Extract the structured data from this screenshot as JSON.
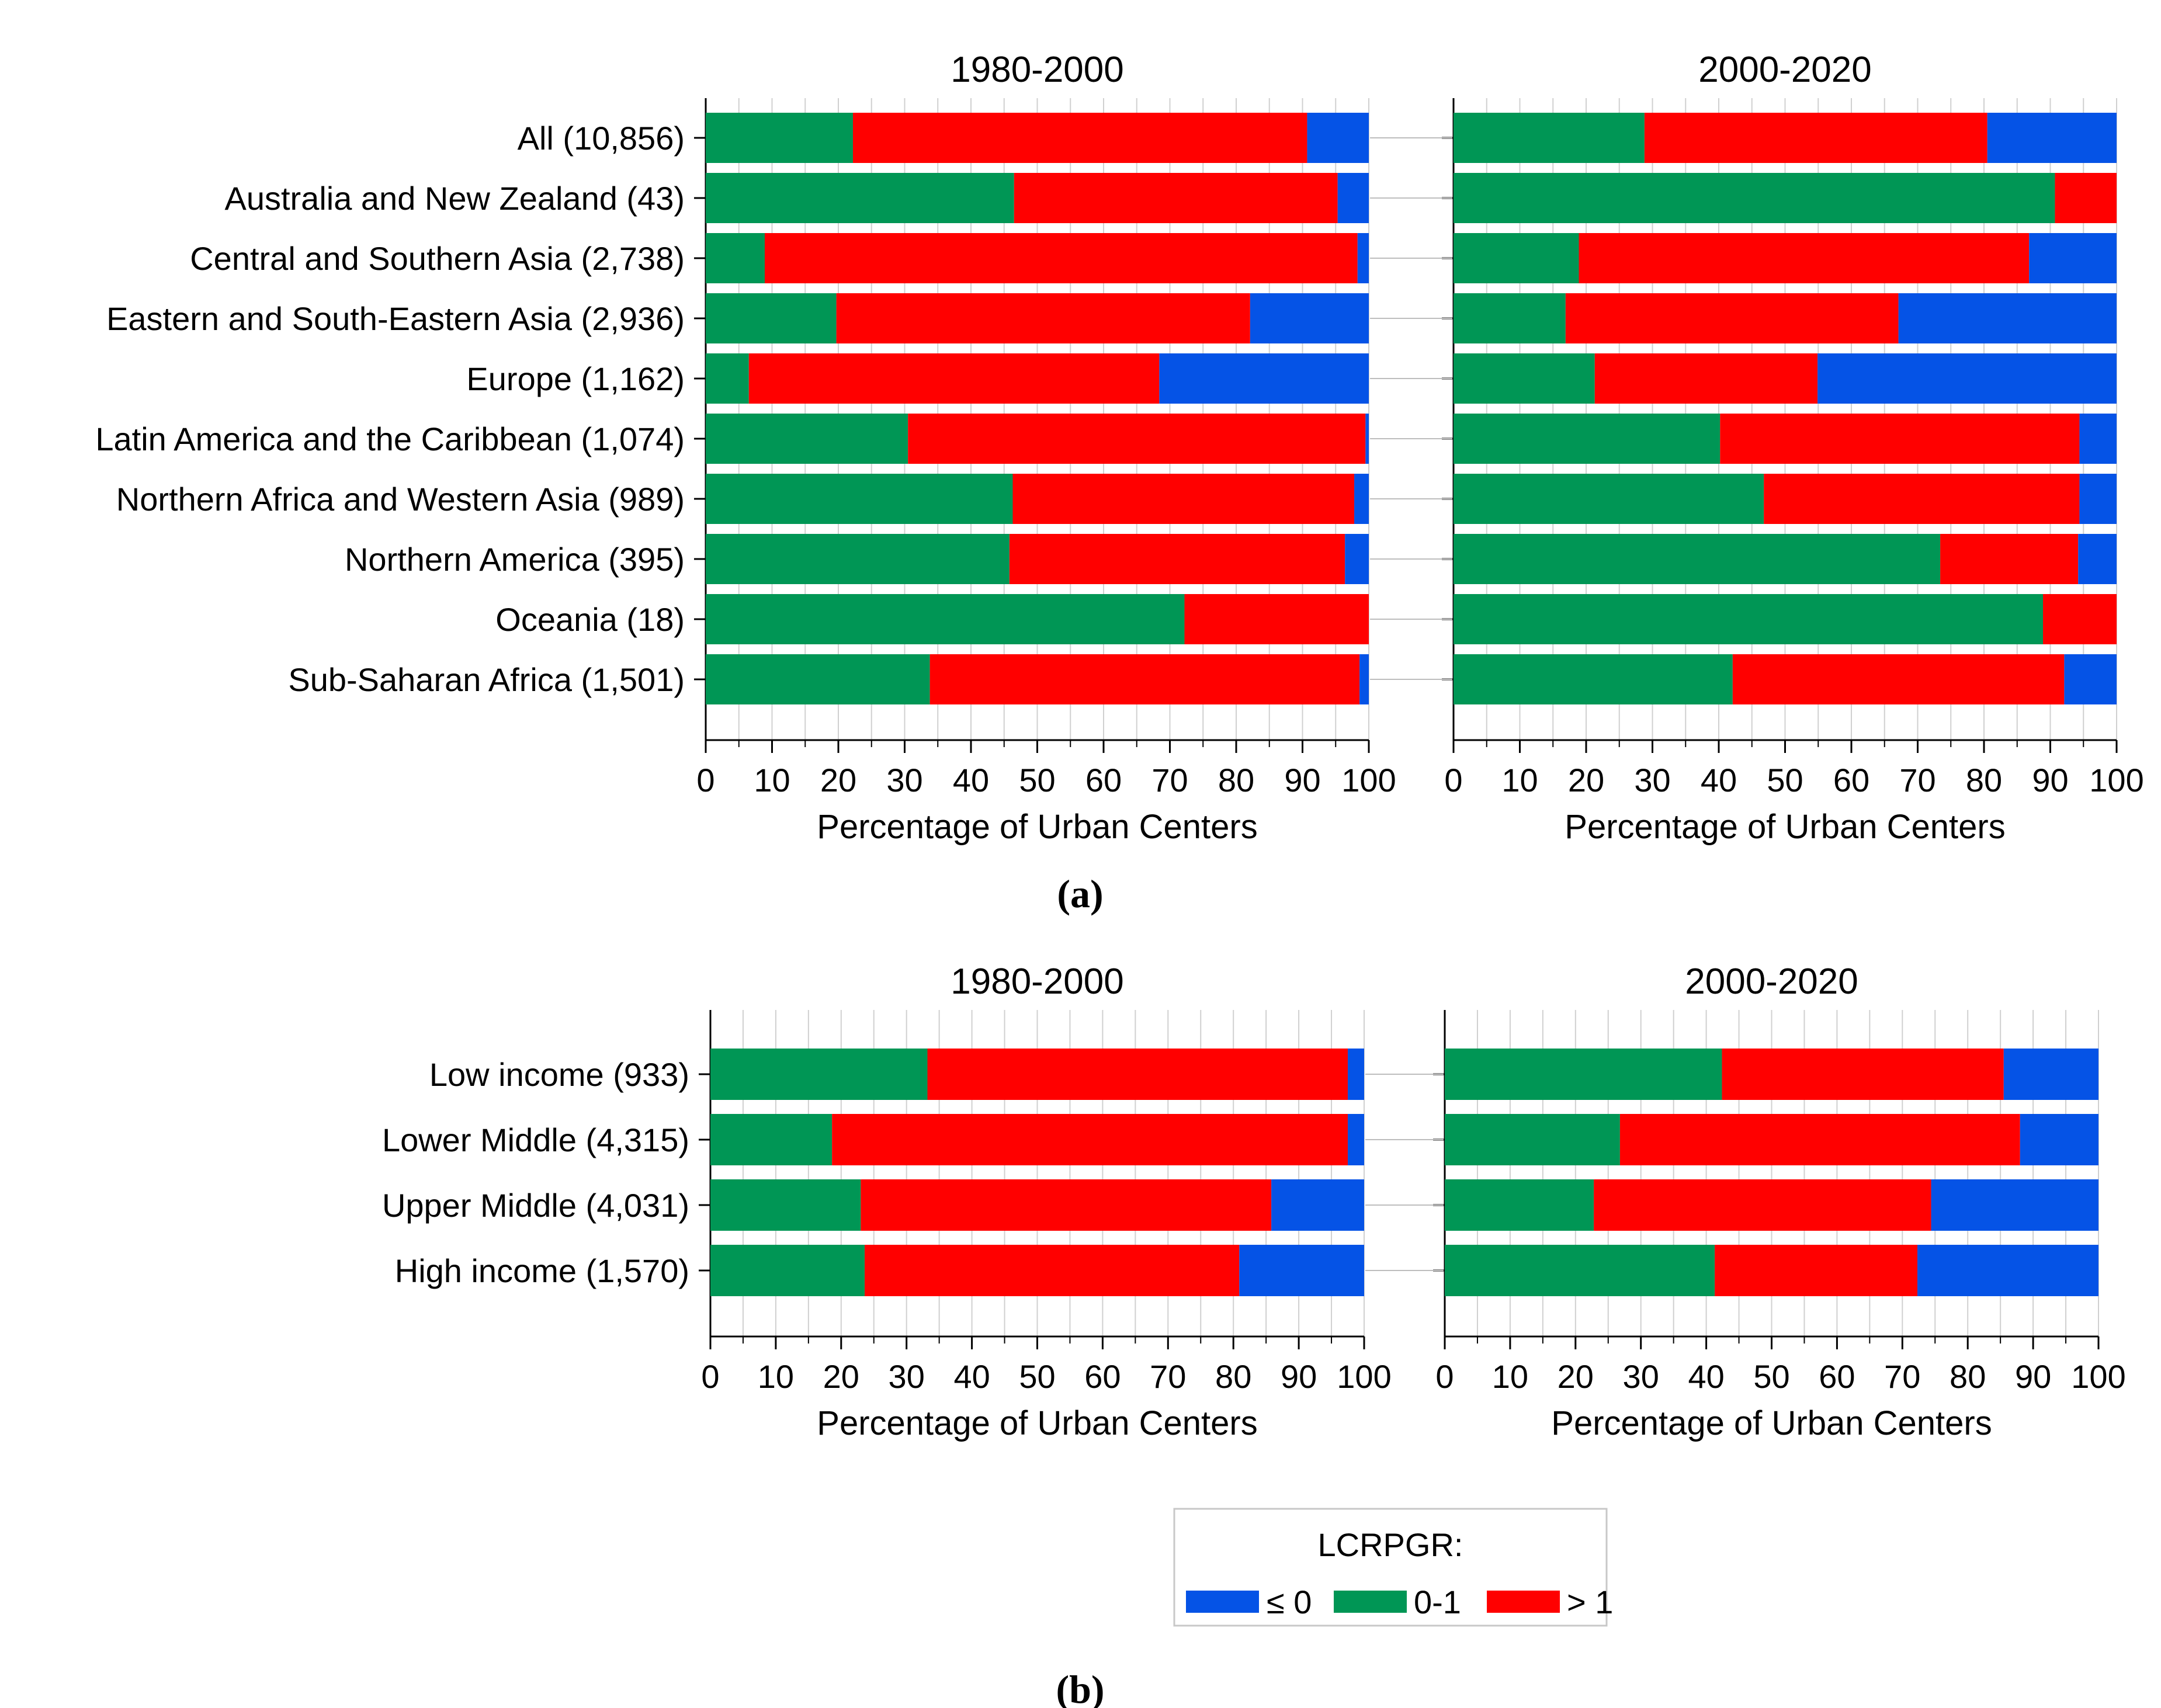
{
  "colors": {
    "le0": "#0553E6",
    "b01": "#009655",
    "gt1": "#FF0000",
    "grid": "#d0d0d0",
    "axis": "#000000"
  },
  "panels": {
    "a": {
      "label": "(a)"
    },
    "b": {
      "label": "(b)"
    }
  },
  "legend": {
    "title": "LCRPGR:",
    "items": [
      {
        "key": "le0",
        "label": "≤ 0"
      },
      {
        "key": "b01",
        "label": "0-1"
      },
      {
        "key": "gt1",
        "label": "> 1"
      }
    ]
  },
  "chart_data": [
    {
      "type": "bar",
      "panel": "a",
      "title": "1980-2000",
      "xlabel": "Percentage of Urban Centers",
      "xlim": [
        0,
        100
      ],
      "xticks": [
        0,
        10,
        20,
        30,
        40,
        50,
        60,
        70,
        80,
        90,
        100
      ],
      "stacked": true,
      "orientation": "horizontal",
      "categories": [
        "All (10,856)",
        "Australia and New Zealand (43)",
        "Central and Southern Asia (2,738)",
        "Eastern and South-Eastern Asia (2,936)",
        "Europe (1,162)",
        "Latin America and the Caribbean (1,074)",
        "Northern Africa and Western Asia (989)",
        "Northern America (395)",
        "Oceania (18)",
        "Sub-Saharan Africa (1,501)"
      ],
      "series": [
        {
          "key": "b01",
          "name": "0-1",
          "values": [
            22.2,
            46.5,
            8.9,
            19.7,
            6.5,
            30.5,
            46.3,
            45.8,
            72.2,
            33.8
          ]
        },
        {
          "key": "gt1",
          "name": "> 1",
          "values": [
            68.5,
            48.8,
            89.4,
            62.4,
            61.9,
            69.0,
            51.5,
            50.6,
            27.8,
            64.8
          ]
        },
        {
          "key": "le0",
          "name": "≤ 0",
          "values": [
            9.3,
            4.7,
            1.7,
            17.9,
            31.6,
            0.5,
            2.2,
            3.6,
            0.0,
            1.4
          ]
        }
      ]
    },
    {
      "type": "bar",
      "panel": "a",
      "title": "2000-2020",
      "xlabel": "Percentage of Urban Centers",
      "xlim": [
        0,
        100
      ],
      "xticks": [
        0,
        10,
        20,
        30,
        40,
        50,
        60,
        70,
        80,
        90,
        100
      ],
      "stacked": true,
      "orientation": "horizontal",
      "categories": [
        "All (10,856)",
        "Australia and New Zealand (43)",
        "Central and Southern Asia (2,738)",
        "Eastern and South-Eastern Asia (2,936)",
        "Europe (1,162)",
        "Latin America and the Caribbean (1,074)",
        "Northern Africa and Western Asia (989)",
        "Northern America (395)",
        "Oceania (18)",
        "Sub-Saharan Africa (1,501)"
      ],
      "series": [
        {
          "key": "b01",
          "name": "0-1",
          "values": [
            28.8,
            90.7,
            18.9,
            16.9,
            21.3,
            40.2,
            46.8,
            73.4,
            88.9,
            42.1
          ]
        },
        {
          "key": "gt1",
          "name": "> 1",
          "values": [
            51.7,
            9.3,
            67.9,
            50.2,
            33.6,
            54.2,
            47.6,
            20.8,
            11.1,
            50.0
          ]
        },
        {
          "key": "le0",
          "name": "≤ 0",
          "values": [
            19.5,
            0.0,
            13.2,
            32.9,
            45.1,
            5.6,
            5.6,
            5.8,
            0.0,
            7.9
          ]
        }
      ]
    },
    {
      "type": "bar",
      "panel": "b",
      "title": "1980-2000",
      "xlabel": "Percentage of Urban Centers",
      "xlim": [
        0,
        100
      ],
      "xticks": [
        0,
        10,
        20,
        30,
        40,
        50,
        60,
        70,
        80,
        90,
        100
      ],
      "stacked": true,
      "orientation": "horizontal",
      "categories": [
        "Low income (933)",
        "Lower Middle (4,315)",
        "Upper Middle (4,031)",
        "High income (1,570)"
      ],
      "series": [
        {
          "key": "b01",
          "name": "0-1",
          "values": [
            33.2,
            18.6,
            23.0,
            23.6
          ]
        },
        {
          "key": "gt1",
          "name": "> 1",
          "values": [
            64.3,
            78.9,
            62.8,
            57.3
          ]
        },
        {
          "key": "le0",
          "name": "≤ 0",
          "values": [
            2.5,
            2.5,
            14.2,
            19.1
          ]
        }
      ]
    },
    {
      "type": "bar",
      "panel": "b",
      "title": "2000-2020",
      "xlabel": "Percentage of Urban Centers",
      "xlim": [
        0,
        100
      ],
      "xticks": [
        0,
        10,
        20,
        30,
        40,
        50,
        60,
        70,
        80,
        90,
        100
      ],
      "stacked": true,
      "orientation": "horizontal",
      "categories": [
        "Low income (933)",
        "Lower Middle (4,315)",
        "Upper Middle (4,031)",
        "High income (1,570)"
      ],
      "series": [
        {
          "key": "b01",
          "name": "0-1",
          "values": [
            42.4,
            26.8,
            22.8,
            41.3
          ]
        },
        {
          "key": "gt1",
          "name": "> 1",
          "values": [
            43.1,
            61.2,
            51.6,
            31.0
          ]
        },
        {
          "key": "le0",
          "name": "≤ 0",
          "values": [
            14.5,
            12.0,
            25.6,
            27.7
          ]
        }
      ]
    }
  ]
}
